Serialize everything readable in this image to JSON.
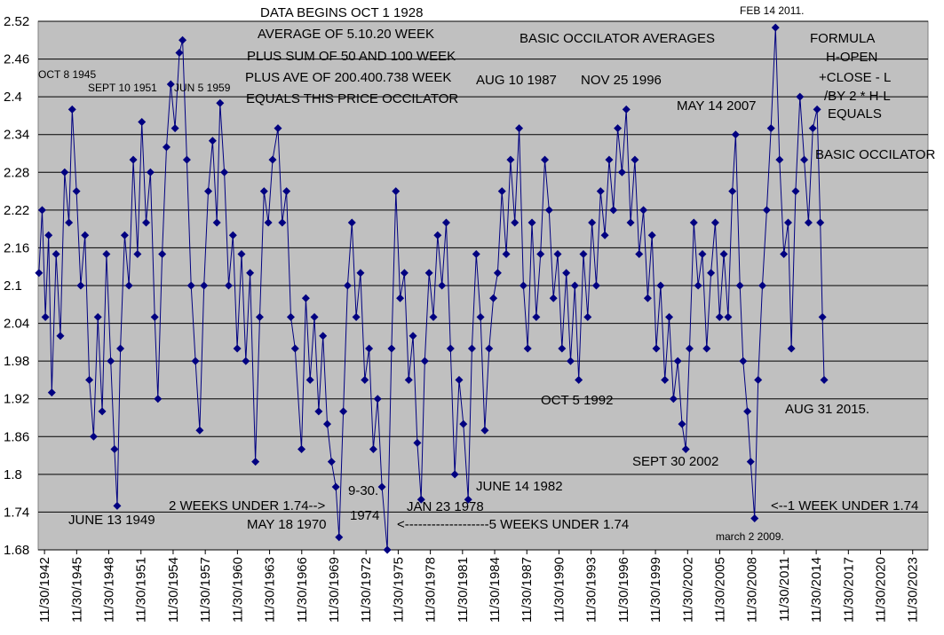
{
  "chart_data": {
    "type": "line",
    "annotations": [
      "DATA BEGINS OCT 1 1928",
      "AVERAGE OF 5.10.20 WEEK",
      "PLUS SUM OF 50 AND 100 WEEK",
      "PLUS AVE OF 200.400.738 WEEK",
      "EQUALS THIS PRICE OCCILATOR",
      "OCT 8 1945",
      "SEPT 10 1951",
      "JUN 5 1959",
      "BASIC OCCILATOR AVERAGES",
      "AUG 10 1987",
      "NOV 25 1996",
      "FEB 14 2011.",
      "MAY 14 2007",
      "FORMULA",
      "H-OPEN",
      "+CLOSE - L",
      "/BY 2 * H-L",
      "EQUALS",
      "BASIC OCCILATOR",
      "OCT 5 1992",
      "AUG 31 2015.",
      "SEPT 30 2002",
      "JUNE 14 1982",
      "9-30.",
      "2 WEEKS UNDER 1.74-->",
      "JAN 23 1978",
      "<--1 WEEK UNDER 1.74",
      "1974",
      "JUNE 13 1949",
      "MAY 18 1970",
      "<-------------------5 WEEKS UNDER 1.74",
      "march 2 2009."
    ],
    "x": [
      1942.4,
      1942.7,
      1943.0,
      1943.3,
      1943.6,
      1944.0,
      1944.4,
      1944.8,
      1945.2,
      1945.5,
      1945.9,
      1946.3,
      1946.7,
      1947.1,
      1947.5,
      1947.9,
      1948.3,
      1948.7,
      1949.1,
      1949.45,
      1949.7,
      1950.0,
      1950.4,
      1950.8,
      1951.2,
      1951.6,
      1952.0,
      1952.4,
      1952.8,
      1953.2,
      1953.5,
      1953.9,
      1954.3,
      1954.7,
      1955.1,
      1955.5,
      1955.8,
      1956.2,
      1956.6,
      1957.0,
      1957.4,
      1957.8,
      1958.2,
      1958.6,
      1959.0,
      1959.3,
      1959.7,
      1960.1,
      1960.5,
      1960.9,
      1961.3,
      1961.7,
      1962.1,
      1962.6,
      1963.0,
      1963.4,
      1963.8,
      1964.2,
      1964.7,
      1965.1,
      1965.5,
      1965.9,
      1966.3,
      1966.9,
      1967.3,
      1967.7,
      1968.1,
      1968.5,
      1968.9,
      1969.3,
      1969.7,
      1970.1,
      1970.4,
      1970.8,
      1971.2,
      1971.6,
      1972.0,
      1972.4,
      1972.8,
      1973.2,
      1973.6,
      1974.0,
      1974.4,
      1974.9,
      1975.3,
      1975.7,
      1976.1,
      1976.5,
      1976.9,
      1977.3,
      1977.7,
      1978.06,
      1978.4,
      1978.8,
      1979.2,
      1979.6,
      1980.0,
      1980.4,
      1980.8,
      1981.2,
      1981.6,
      1982.0,
      1982.45,
      1982.8,
      1983.2,
      1983.6,
      1984.0,
      1984.4,
      1984.8,
      1985.2,
      1985.6,
      1986.0,
      1986.4,
      1986.8,
      1987.2,
      1987.6,
      1988.0,
      1988.4,
      1988.8,
      1989.2,
      1989.6,
      1990.0,
      1990.4,
      1990.8,
      1991.2,
      1991.6,
      1992.0,
      1992.4,
      1992.76,
      1993.2,
      1993.6,
      1994.0,
      1994.4,
      1994.8,
      1995.2,
      1995.6,
      1996.0,
      1996.4,
      1996.8,
      1997.2,
      1997.6,
      1998.0,
      1998.4,
      1998.8,
      1999.2,
      1999.6,
      2000.0,
      2000.4,
      2000.8,
      2001.2,
      2001.6,
      2002.0,
      2002.4,
      2002.75,
      2003.1,
      2003.5,
      2003.9,
      2004.3,
      2004.7,
      2005.1,
      2005.5,
      2005.9,
      2006.3,
      2006.7,
      2007.1,
      2007.4,
      2007.8,
      2008.1,
      2008.5,
      2008.8,
      2009.17,
      2009.5,
      2009.9,
      2010.3,
      2010.7,
      2011.12,
      2011.5,
      2011.9,
      2012.3,
      2012.6,
      2013.0,
      2013.4,
      2013.8,
      2014.2,
      2014.6,
      2015.0,
      2015.3,
      2015.5,
      2015.66
    ],
    "series": [
      {
        "color": "#000080",
        "values": [
          2.12,
          2.22,
          2.05,
          2.18,
          1.93,
          2.15,
          2.02,
          2.28,
          2.2,
          2.38,
          2.25,
          2.1,
          2.18,
          1.95,
          1.86,
          2.05,
          1.9,
          2.15,
          1.98,
          1.84,
          1.75,
          2.0,
          2.18,
          2.1,
          2.3,
          2.15,
          2.36,
          2.2,
          2.28,
          2.05,
          1.92,
          2.15,
          2.32,
          2.42,
          2.35,
          2.47,
          2.49,
          2.3,
          2.1,
          1.98,
          1.87,
          2.1,
          2.25,
          2.33,
          2.2,
          2.39,
          2.28,
          2.1,
          2.18,
          2.0,
          2.15,
          1.98,
          2.12,
          1.82,
          2.05,
          2.25,
          2.2,
          2.3,
          2.35,
          2.2,
          2.25,
          2.05,
          2.0,
          1.84,
          2.08,
          1.95,
          2.05,
          1.9,
          2.02,
          1.88,
          1.82,
          1.78,
          1.7,
          1.9,
          2.1,
          2.2,
          2.05,
          2.12,
          1.95,
          2.0,
          1.84,
          1.92,
          1.78,
          1.68,
          2.0,
          2.25,
          2.08,
          2.12,
          1.95,
          2.02,
          1.85,
          1.76,
          1.98,
          2.12,
          2.05,
          2.18,
          2.1,
          2.2,
          2.0,
          1.8,
          1.95,
          1.88,
          1.76,
          2.0,
          2.15,
          2.05,
          1.87,
          2.0,
          2.08,
          2.12,
          2.25,
          2.15,
          2.3,
          2.2,
          2.35,
          2.1,
          2.0,
          2.2,
          2.05,
          2.15,
          2.3,
          2.22,
          2.08,
          2.15,
          2.0,
          2.12,
          1.98,
          2.1,
          1.95,
          2.15,
          2.05,
          2.2,
          2.1,
          2.25,
          2.18,
          2.3,
          2.22,
          2.35,
          2.28,
          2.38,
          2.2,
          2.3,
          2.15,
          2.22,
          2.08,
          2.18,
          2.0,
          2.1,
          1.95,
          2.05,
          1.92,
          1.98,
          1.88,
          1.84,
          2.0,
          2.2,
          2.1,
          2.15,
          2.0,
          2.12,
          2.2,
          2.05,
          2.15,
          2.05,
          2.25,
          2.34,
          2.1,
          1.98,
          1.9,
          1.82,
          1.73,
          1.95,
          2.1,
          2.22,
          2.35,
          2.51,
          2.3,
          2.15,
          2.2,
          2.0,
          2.25,
          2.4,
          2.3,
          2.2,
          2.35,
          2.38,
          2.2,
          2.05,
          1.95
        ]
      }
    ],
    "xlim": [
      1942.33,
      2025.35
    ],
    "xticks": [
      {
        "value": 1942.92,
        "label": "11/30/1942"
      },
      {
        "value": 1945.92,
        "label": "11/30/1945"
      },
      {
        "value": 1948.92,
        "label": "11/30/1948"
      },
      {
        "value": 1951.92,
        "label": "11/30/1951"
      },
      {
        "value": 1954.92,
        "label": "11/30/1954"
      },
      {
        "value": 1957.92,
        "label": "11/30/1957"
      },
      {
        "value": 1960.92,
        "label": "11/30/1960"
      },
      {
        "value": 1963.92,
        "label": "11/30/1963"
      },
      {
        "value": 1966.92,
        "label": "11/30/1966"
      },
      {
        "value": 1969.92,
        "label": "11/30/1969"
      },
      {
        "value": 1972.92,
        "label": "11/30/1972"
      },
      {
        "value": 1975.92,
        "label": "11/30/1975"
      },
      {
        "value": 1978.92,
        "label": "11/30/1978"
      },
      {
        "value": 1981.92,
        "label": "11/30/1981"
      },
      {
        "value": 1984.92,
        "label": "11/30/1984"
      },
      {
        "value": 1987.92,
        "label": "11/30/1987"
      },
      {
        "value": 1990.92,
        "label": "11/30/1990"
      },
      {
        "value": 1993.92,
        "label": "11/30/1993"
      },
      {
        "value": 1996.92,
        "label": "11/30/1996"
      },
      {
        "value": 1999.92,
        "label": "11/30/1999"
      },
      {
        "value": 2002.92,
        "label": "11/30/2002"
      },
      {
        "value": 2005.92,
        "label": "11/30/2005"
      },
      {
        "value": 2008.92,
        "label": "11/30/2008"
      },
      {
        "value": 2011.92,
        "label": "11/30/2011"
      },
      {
        "value": 2014.92,
        "label": "11/30/2014"
      },
      {
        "value": 2017.92,
        "label": "11/30/2017"
      },
      {
        "value": 2020.92,
        "label": "11/30/2020"
      },
      {
        "value": 2023.92,
        "label": "11/30/2023"
      }
    ],
    "ylim": [
      1.68,
      2.52
    ],
    "yticks": [
      1.68,
      1.74,
      1.8,
      1.86,
      1.92,
      1.98,
      2.04,
      2.1,
      2.16,
      2.22,
      2.28,
      2.34,
      2.4,
      2.46,
      2.52
    ],
    "grid": true
  }
}
